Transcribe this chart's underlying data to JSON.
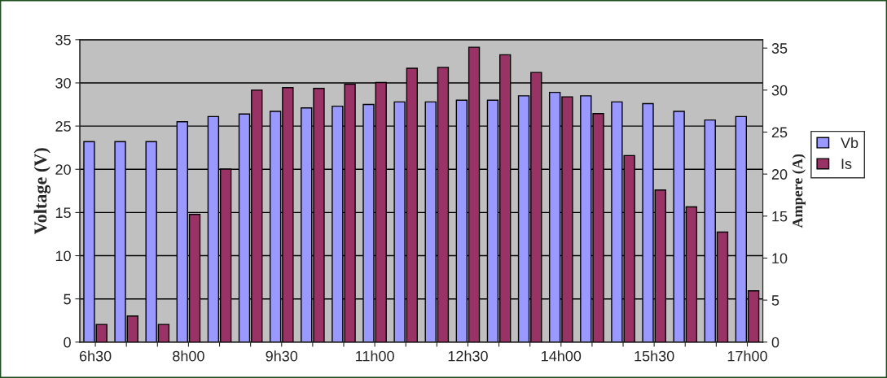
{
  "chart_data": {
    "type": "bar",
    "ylabel": "Voltage (V)",
    "y2label": "Ampere (A)",
    "categories": [
      "6h30",
      null,
      null,
      "8h00",
      null,
      null,
      "9h30",
      null,
      null,
      "11h00",
      null,
      null,
      "12h30",
      null,
      null,
      "14h00",
      null,
      null,
      "15h30",
      null,
      null,
      "17h00"
    ],
    "series": [
      {
        "name": "Vb",
        "color": "#9999ff",
        "values": [
          23.2,
          23.2,
          23.2,
          25.5,
          26.1,
          26.4,
          26.7,
          27.1,
          27.3,
          27.5,
          27.8,
          27.8,
          28.0,
          28.0,
          28.5,
          28.9,
          28.5,
          27.8,
          27.6,
          26.7,
          25.7,
          26.1
        ]
      },
      {
        "name": "Is",
        "color": "#993366",
        "axis": "y2",
        "values": [
          2.1,
          3.1,
          2.1,
          15.2,
          20.6,
          30.0,
          30.3,
          30.2,
          30.7,
          30.9,
          32.6,
          32.7,
          35.1,
          34.2,
          32.1,
          29.2,
          27.2,
          22.2,
          18.1,
          16.1,
          13.1,
          6.1
        ]
      }
    ],
    "ylim": [
      0,
      35
    ],
    "yticks": [
      0,
      5,
      10,
      15,
      20,
      25,
      30,
      35
    ],
    "y2lim": [
      0,
      36
    ],
    "y2ticks": [
      0,
      5,
      10,
      15,
      20,
      25,
      30,
      35
    ],
    "grid": "y",
    "legend": "right"
  }
}
